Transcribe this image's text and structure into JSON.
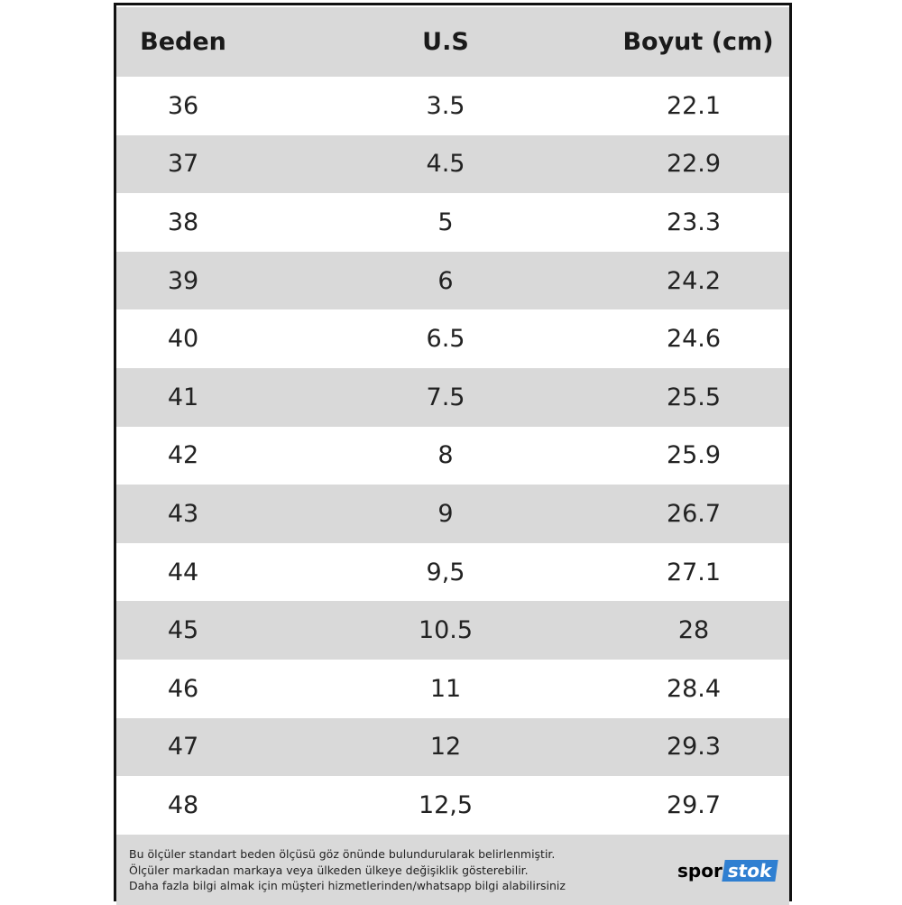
{
  "table": {
    "header": [
      "Beden",
      "U.S",
      "Boyut (cm)"
    ],
    "rows": [
      [
        "36",
        "3.5",
        "22.1"
      ],
      [
        "37",
        "4.5",
        "22.9"
      ],
      [
        "38",
        "5",
        "23.3"
      ],
      [
        "39",
        "6",
        "24.2"
      ],
      [
        "40",
        "6.5",
        "24.6"
      ],
      [
        "41",
        "7.5",
        "25.5"
      ],
      [
        "42",
        "8",
        "25.9"
      ],
      [
        "43",
        "9",
        "26.7"
      ],
      [
        "44",
        "9,5",
        "27.1"
      ],
      [
        "45",
        "10.5",
        "28"
      ],
      [
        "46",
        "11",
        "28.4"
      ],
      [
        "47",
        "12",
        "29.3"
      ],
      [
        "48",
        "12,5",
        "29.7"
      ]
    ]
  },
  "footer": {
    "notes": [
      "Bu ölçüler standart beden ölçüsü göz önünde bulundurularak belirlenmiştir.",
      "Ölçüler markadan markaya veya ülkeden ülkeye değişiklik gösterebilir.",
      "Daha fazla bilgi almak için müşteri hizmetlerinden/whatsapp bilgi alabilirsiniz"
    ],
    "logo": [
      "spor",
      "stok"
    ]
  }
}
